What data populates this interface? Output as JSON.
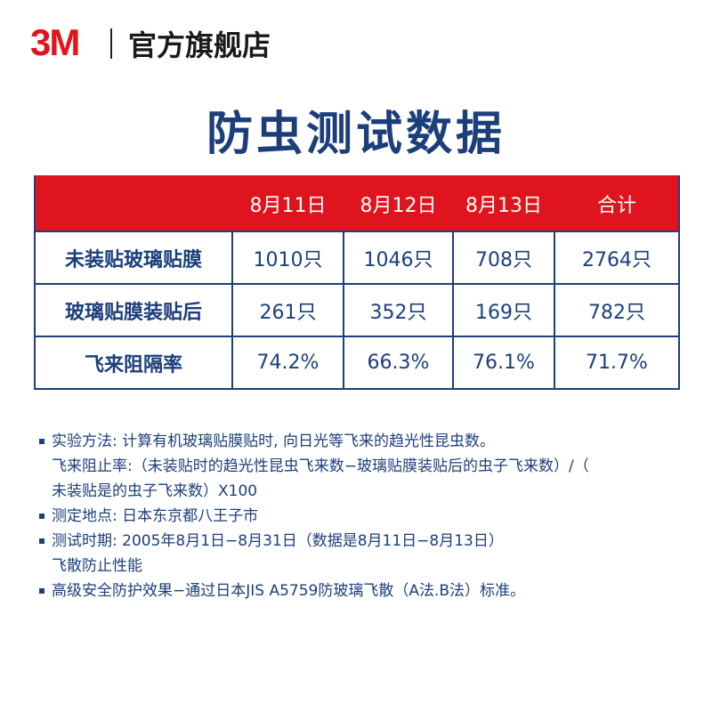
{
  "header": {
    "logo": "3M",
    "store": "官方旗舰店"
  },
  "title": "防虫测试数据",
  "table": {
    "columns": [
      "",
      "8月11日",
      "8月12日",
      "8月13日",
      "合计"
    ],
    "rows": [
      [
        "未装贴玻璃贴膜",
        "1010只",
        "1046只",
        "708只",
        "2764只"
      ],
      [
        "玻璃贴膜装贴后",
        "261只",
        "352只",
        "169只",
        "782只"
      ],
      [
        "飞来阻隔率",
        "74.2%",
        "66.3%",
        "76.1%",
        "71.7%"
      ]
    ]
  },
  "notes": [
    {
      "lines": [
        "实验方法: 计算有机玻璃贴膜贴时, 向日光等飞来的趋光性昆虫数。",
        "飞来阻止率:（未装贴时的趋光性昆虫飞来数−玻璃贴膜装贴后的虫子飞来数）/（",
        "未装贴是的虫子飞来数）X100"
      ]
    },
    {
      "lines": [
        "测定地点: 日本东京都八王子市"
      ]
    },
    {
      "lines": [
        "测试时期: 2005年8月1日−8月31日（数据是8月11日−8月13日）",
        "飞散防止性能"
      ]
    },
    {
      "lines": [
        "高级安全防护效果−通过日本JIS A5759防玻璃飞散（A法.B法）标准。"
      ]
    }
  ]
}
